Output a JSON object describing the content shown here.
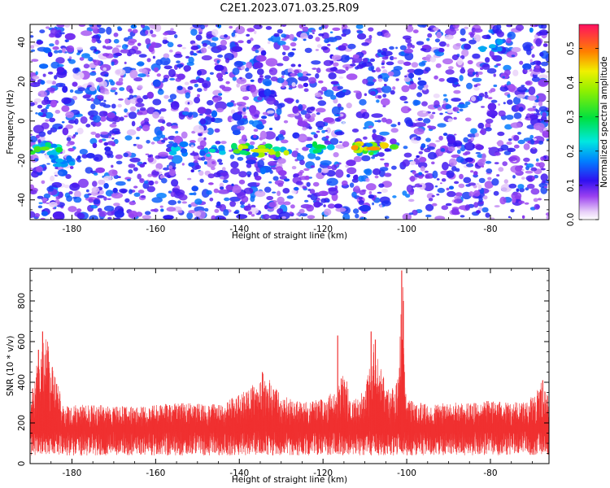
{
  "chart_data": [
    {
      "type": "heatmap",
      "title": "C2E1.2023.071.03.25.R09",
      "xlabel": "Height of straight line (km)",
      "ylabel": "Frequency (Hz)",
      "xlim": [
        -190,
        -66
      ],
      "ylim": [
        -50,
        49
      ],
      "x_ticks": [
        -180,
        -160,
        -140,
        -120,
        -100,
        -80
      ],
      "y_ticks": [
        -40,
        -20,
        0,
        20,
        40
      ],
      "colorbar": {
        "label": "Normalized spectral amplitude",
        "range": [
          0,
          0.57
        ],
        "ticks": [
          0.0,
          0.1,
          0.2,
          0.3,
          0.4,
          0.5
        ]
      },
      "bands": [
        {
          "x_start": -190,
          "x_end": -183,
          "freq": -14,
          "peak": 0.35
        },
        {
          "x_start": -186,
          "x_end": -180,
          "freq": -20,
          "peak": 0.2
        },
        {
          "x_start": -156,
          "x_end": -153,
          "freq": -14,
          "peak": 0.22
        },
        {
          "x_start": -149,
          "x_end": -144,
          "freq": -15,
          "peak": 0.25
        },
        {
          "x_start": -142,
          "x_end": -128,
          "freq": -15,
          "peak": 0.42
        },
        {
          "x_start": -124,
          "x_end": -117,
          "freq": -13,
          "peak": 0.3
        },
        {
          "x_start": -113,
          "x_end": -103,
          "freq": -14,
          "peak": 0.48
        },
        {
          "x_start": -82,
          "x_end": -77,
          "freq": 38,
          "peak": 0.2
        }
      ]
    },
    {
      "type": "line",
      "xlabel": "Height of straight line (km)",
      "ylabel": "SNR (10 * v/v)",
      "xlim": [
        -190,
        -66
      ],
      "ylim": [
        0,
        960
      ],
      "x_ticks": [
        -180,
        -160,
        -140,
        -120,
        -100,
        -80
      ],
      "y_ticks": [
        0,
        200,
        400,
        600,
        800
      ],
      "color": "#f03030",
      "baseline": 150,
      "envelope": [
        [
          -190,
          300
        ],
        [
          -188,
          560
        ],
        [
          -186,
          640
        ],
        [
          -184,
          430
        ],
        [
          -182,
          290
        ],
        [
          -175,
          290
        ],
        [
          -165,
          280
        ],
        [
          -155,
          300
        ],
        [
          -150,
          300
        ],
        [
          -145,
          290
        ],
        [
          -140,
          340
        ],
        [
          -136,
          400
        ],
        [
          -134,
          450
        ],
        [
          -130,
          340
        ],
        [
          -125,
          300
        ],
        [
          -120,
          320
        ],
        [
          -116,
          400
        ],
        [
          -115,
          470
        ],
        [
          -113,
          310
        ],
        [
          -110,
          360
        ],
        [
          -108,
          620
        ],
        [
          -106,
          460
        ],
        [
          -104,
          350
        ],
        [
          -102,
          430
        ],
        [
          -101,
          950
        ],
        [
          -100,
          320
        ],
        [
          -95,
          290
        ],
        [
          -90,
          300
        ],
        [
          -85,
          300
        ],
        [
          -80,
          310
        ],
        [
          -75,
          300
        ],
        [
          -70,
          330
        ],
        [
          -68,
          400
        ],
        [
          -66,
          330
        ]
      ],
      "spikes": [
        {
          "x": -188,
          "y": 560
        },
        {
          "x": -187,
          "y": 650
        },
        {
          "x": -185.5,
          "y": 470
        },
        {
          "x": -134.5,
          "y": 450
        },
        {
          "x": -116.5,
          "y": 630
        },
        {
          "x": -108.5,
          "y": 650
        },
        {
          "x": -107.5,
          "y": 610
        },
        {
          "x": -101.2,
          "y": 950
        },
        {
          "x": -100.8,
          "y": 800
        },
        {
          "x": -67.5,
          "y": 410
        }
      ]
    }
  ]
}
